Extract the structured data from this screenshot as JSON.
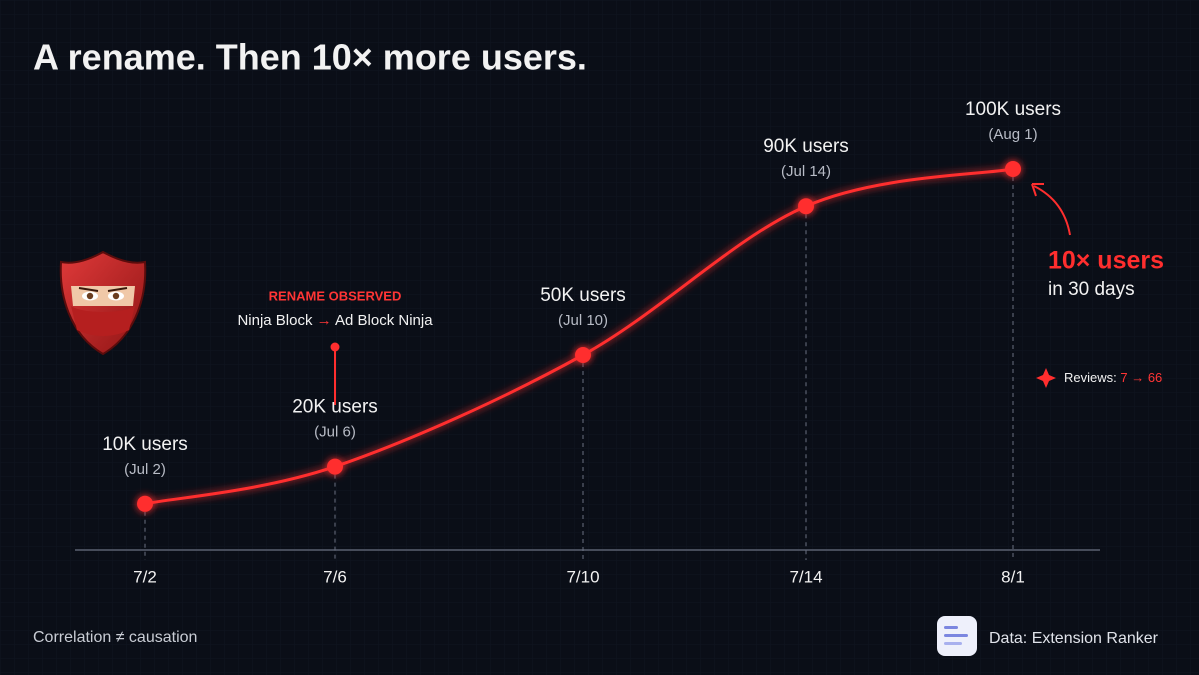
{
  "chart_data": {
    "type": "line",
    "title": "A rename. Then 10× more users.",
    "categories": [
      "7/2",
      "7/6",
      "7/10",
      "7/14",
      "8/1"
    ],
    "values": [
      10000,
      20000,
      50000,
      90000,
      100000
    ],
    "value_labels": [
      "10K users",
      "20K users",
      "50K users",
      "90K users",
      "100K users"
    ],
    "date_labels": [
      "(Jul 2)",
      "(Jul 6)",
      "(Jul 10)",
      "(Jul 14)",
      "(Aug 1)"
    ],
    "color": "#ff2e2e",
    "ylim": [
      0,
      100000
    ],
    "rename": {
      "title": "RENAME OBSERVED",
      "from": "Ninja Block",
      "arrow": "→",
      "to": "Ad Block Ninja"
    },
    "callout": {
      "headline": "10× users",
      "sub": "in 30 days"
    },
    "reviews": {
      "label": "Reviews:",
      "change": "7 → 66"
    },
    "note": "Correlation ≠ causation",
    "source": "Data: Extension Ranker"
  }
}
